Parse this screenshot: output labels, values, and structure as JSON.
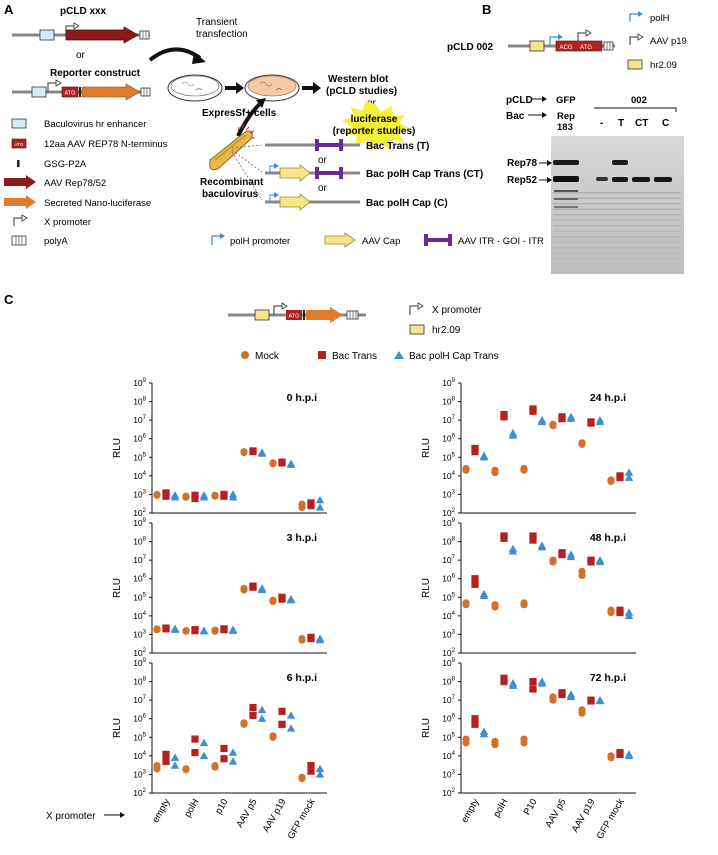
{
  "panel_a": {
    "label": "A",
    "construct1": "pCLD xxx",
    "or1": "or",
    "construct2": "Reporter construct",
    "atg": "ATG",
    "transfection": [
      "Transient",
      "transfection"
    ],
    "cells": "ExpresSf+ cells",
    "western": [
      "Western blot",
      "(pCLD studies)"
    ],
    "or_mid": "or",
    "reporter": [
      "luciferase",
      "(reporter studies)"
    ],
    "recombinant": [
      "Recombinant",
      "baculovirus"
    ],
    "bac_trans": "Bac Trans (T)",
    "or2": "or",
    "bac_ct": "Bac polH Cap Trans (CT)",
    "or3": "or",
    "bac_c": "Bac polH Cap (C)",
    "legend": [
      "Baculovirus hr enhancer",
      "12aa AAV REP78 N-terminus",
      "GSG-P2A",
      "AAV Rep78/52",
      "Secreted Nano-luciferase",
      "X promoter",
      "polyA"
    ],
    "bottom_legend": [
      "polH promoter",
      "AAV Cap",
      "AAV ITR - GOI - ITR"
    ]
  },
  "panel_b": {
    "label": "B",
    "construct": "pCLD 002",
    "acg": "ACG",
    "atg": "ATG",
    "legend": [
      "polH",
      "AAV p19",
      "hr2.09"
    ],
    "row_pcld": "pCLD",
    "row_bac": "Bac",
    "gfp": "GFP",
    "rep": [
      "Rep",
      "183"
    ],
    "group002": "002",
    "lanes": [
      "-",
      "T",
      "CT",
      "C"
    ],
    "rep78": "Rep78",
    "rep52": "Rep52"
  },
  "panel_c": {
    "label": "C",
    "atg": "ATG",
    "legend_x": "X promoter",
    "legend_hr": "hr2.09",
    "x_promoter_label": "X promoter",
    "ylabel": "RLU"
  },
  "chart_data": [
    {
      "type": "scatter",
      "title": "0 h.p.i",
      "ylabel": "RLU",
      "yscale": "log",
      "ylim": [
        100,
        1000000000
      ],
      "categories": [
        "empty",
        "polH",
        "p10",
        "AAV p5",
        "AAV p19",
        "GFP mock"
      ],
      "series": [
        {
          "name": "Mock",
          "values": [
            [
              1000,
              900
            ],
            [
              800,
              700
            ],
            [
              900,
              800
            ],
            [
              200000,
              180000
            ],
            [
              50000,
              45000
            ],
            [
              300,
              200
            ]
          ]
        },
        {
          "name": "Bac Trans",
          "values": [
            [
              1200,
              800
            ],
            [
              900,
              600
            ],
            [
              1000,
              800
            ],
            [
              220000,
              200000
            ],
            [
              55000,
              50000
            ],
            [
              350,
              250
            ]
          ]
        },
        {
          "name": "Bac polH Cap Trans",
          "values": [
            [
              900,
              700
            ],
            [
              900,
              700
            ],
            [
              1000,
              700
            ],
            [
              180000,
              160000
            ],
            [
              45000,
              40000
            ],
            [
              500,
              200
            ]
          ]
        }
      ]
    },
    {
      "type": "scatter",
      "title": "24 h.p.i",
      "ylabel": "RLU",
      "yscale": "log",
      "ylim": [
        100,
        1000000000
      ],
      "categories": [
        "empty",
        "polH",
        "P10",
        "AAV p5",
        "AAV p19",
        "GFP mock"
      ],
      "series": [
        {
          "name": "Mock",
          "values": [
            [
              25000,
              20000
            ],
            [
              20000,
              15000
            ],
            [
              25000,
              20000
            ],
            [
              6000000,
              5000000
            ],
            [
              600000,
              500000
            ],
            [
              6000,
              5000
            ]
          ]
        },
        {
          "name": "Bac Trans",
          "values": [
            [
              300000,
              200000
            ],
            [
              20000000,
              15000000
            ],
            [
              40000000,
              30000000
            ],
            [
              15000000,
              12000000
            ],
            [
              8000000,
              7000000
            ],
            [
              10000,
              8000
            ]
          ]
        },
        {
          "name": "Bac polH Cap Trans",
          "values": [
            [
              120000,
              100000
            ],
            [
              2000000,
              1500000
            ],
            [
              10000000,
              8000000
            ],
            [
              15000000,
              12000000
            ],
            [
              10000000,
              8000000
            ],
            [
              15000,
              8000
            ]
          ]
        }
      ]
    },
    {
      "type": "scatter",
      "title": "3 h.p.i",
      "ylabel": "RLU",
      "yscale": "log",
      "ylim": [
        100,
        1000000000
      ],
      "categories": [
        "empty",
        "polH",
        "p10",
        "AAV p5",
        "AAV p19",
        "GFP mock"
      ],
      "series": [
        {
          "name": "Mock",
          "values": [
            [
              2000,
              1800
            ],
            [
              1600,
              1500
            ],
            [
              1700,
              1500
            ],
            [
              300000,
              250000
            ],
            [
              70000,
              60000
            ],
            [
              600,
              500
            ]
          ]
        },
        {
          "name": "Bac Trans",
          "values": [
            [
              2200,
              2000
            ],
            [
              1800,
              1600
            ],
            [
              2000,
              1800
            ],
            [
              400000,
              350000
            ],
            [
              100000,
              80000
            ],
            [
              700,
              600
            ]
          ]
        },
        {
          "name": "Bac polH Cap Trans",
          "values": [
            [
              2000,
              1800
            ],
            [
              1600,
              1500
            ],
            [
              1800,
              1600
            ],
            [
              300000,
              250000
            ],
            [
              80000,
              70000
            ],
            [
              600,
              500
            ]
          ]
        }
      ]
    },
    {
      "type": "scatter",
      "title": "48 h.p.i",
      "ylabel": "RLU",
      "yscale": "log",
      "ylim": [
        100,
        1000000000
      ],
      "categories": [
        "empty",
        "polH",
        "P10",
        "AAV p5",
        "AAV p19",
        "GFP mock"
      ],
      "series": [
        {
          "name": "Mock",
          "values": [
            [
              50000,
              40000
            ],
            [
              40000,
              30000
            ],
            [
              50000,
              40000
            ],
            [
              10000000,
              8000000
            ],
            [
              2500000,
              1500000
            ],
            [
              20000,
              15000
            ]
          ]
        },
        {
          "name": "Bac Trans",
          "values": [
            [
              1000000,
              500000
            ],
            [
              200000000,
              150000000
            ],
            [
              200000000,
              120000000
            ],
            [
              25000000,
              20000000
            ],
            [
              10000000,
              8000000
            ],
            [
              20000,
              15000
            ]
          ]
        },
        {
          "name": "Bac polH Cap Trans",
          "values": [
            [
              150000,
              120000
            ],
            [
              40000000,
              30000000
            ],
            [
              60000000,
              50000000
            ],
            [
              20000000,
              15000000
            ],
            [
              10000000,
              8000000
            ],
            [
              15000,
              10000
            ]
          ]
        }
      ]
    },
    {
      "type": "scatter",
      "title": "6 h.p.i",
      "ylabel": "RLU",
      "yscale": "log",
      "ylim": [
        100,
        1000000000
      ],
      "categories": [
        "empty",
        "polH",
        "p10",
        "AAV p5",
        "AAV p19",
        "GFP mock"
      ],
      "series": [
        {
          "name": "Mock",
          "values": [
            [
              3000,
              2000
            ],
            [
              2000,
              1800
            ],
            [
              3000,
              2500
            ],
            [
              600000,
              500000
            ],
            [
              120000,
              100000
            ],
            [
              700,
              600
            ]
          ]
        },
        {
          "name": "Bac Trans",
          "values": [
            [
              12000,
              5000
            ],
            [
              80000,
              15000
            ],
            [
              25000,
              7000
            ],
            [
              4000000,
              1500000
            ],
            [
              2500000,
              500000
            ],
            [
              3000,
              1500
            ]
          ]
        },
        {
          "name": "Bac polH Cap Trans",
          "values": [
            [
              8000,
              3000
            ],
            [
              50000,
              10000
            ],
            [
              15000,
              5000
            ],
            [
              3000000,
              1000000
            ],
            [
              1500000,
              300000
            ],
            [
              2000,
              1000
            ]
          ]
        }
      ]
    },
    {
      "type": "scatter",
      "title": "72 h.p.i",
      "ylabel": "RLU",
      "yscale": "log",
      "ylim": [
        100,
        1000000000
      ],
      "categories": [
        "empty",
        "polH",
        "P10",
        "AAV p5",
        "AAV p19",
        "GFP mock"
      ],
      "series": [
        {
          "name": "Mock",
          "values": [
            [
              80000,
              50000
            ],
            [
              60000,
              40000
            ],
            [
              80000,
              50000
            ],
            [
              15000000,
              10000000
            ],
            [
              3000000,
              2000000
            ],
            [
              10000,
              8000
            ]
          ]
        },
        {
          "name": "Bac Trans",
          "values": [
            [
              1000000,
              500000
            ],
            [
              150000000,
              100000000
            ],
            [
              100000000,
              40000000
            ],
            [
              25000000,
              20000000
            ],
            [
              10000000,
              9000000
            ],
            [
              15000,
              12000
            ]
          ]
        },
        {
          "name": "Bac polH Cap Trans",
          "values": [
            [
              200000,
              150000
            ],
            [
              80000000,
              60000000
            ],
            [
              100000000,
              80000000
            ],
            [
              20000000,
              15000000
            ],
            [
              10000000,
              9000000
            ],
            [
              12000,
              10000
            ]
          ]
        }
      ]
    }
  ],
  "chart_legend": {
    "mock": "Mock",
    "bac_trans": "Bac Trans",
    "bac_ct": "Bac polH Cap Trans"
  },
  "colors": {
    "mock": "#d4702a",
    "bac_trans": "#b22222",
    "bac_ct": "#3d8fd0",
    "rep": "#a52a2a",
    "luc": "#e07a2c",
    "itr": "#6a2c91",
    "cap": "#f6e68a"
  }
}
